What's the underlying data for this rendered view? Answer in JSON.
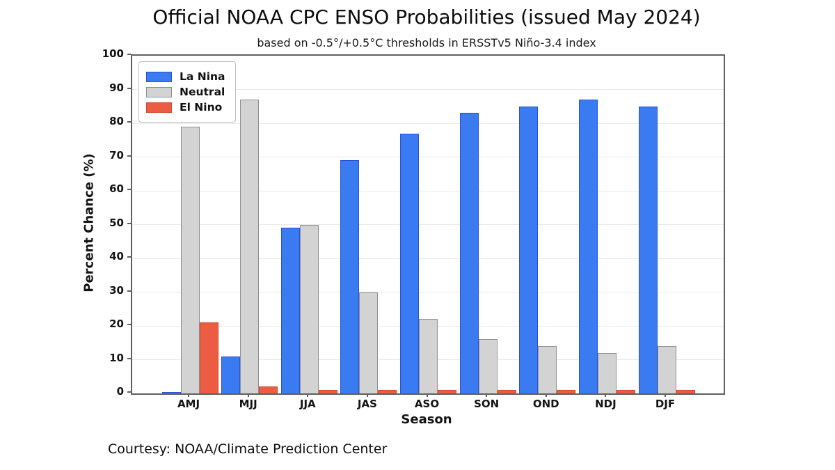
{
  "chart_data": {
    "type": "bar",
    "title": "Official NOAA CPC ENSO Probabilities (issued May 2024)",
    "subtitle": "based on -0.5°/+0.5°C thresholds in ERSSTv5 Niño-3.4 index",
    "xlabel": "Season",
    "ylabel": "Percent Chance (%)",
    "ylim": [
      0,
      100
    ],
    "yticks": [
      0,
      10,
      20,
      30,
      40,
      50,
      60,
      70,
      80,
      90,
      100
    ],
    "grid": "horizontal",
    "legend_position": "upper-left",
    "categories": [
      "AMJ",
      "MJJ",
      "JJA",
      "JAS",
      "ASO",
      "SON",
      "OND",
      "NDJ",
      "DJF"
    ],
    "series": [
      {
        "name": "La Nina",
        "color": "#3a7bf2",
        "edge_color": "#2a4fd8",
        "values": [
          0,
          11,
          49,
          69,
          77,
          83,
          85,
          87,
          85
        ]
      },
      {
        "name": "Neutral",
        "color": "#d3d3d3",
        "edge_color": "#8f8f8f",
        "values": [
          79,
          87,
          50,
          30,
          22,
          16,
          14,
          12,
          14
        ]
      },
      {
        "name": "El Nino",
        "color": "#ec5c43",
        "edge_color": "#d3492f",
        "values": [
          21,
          2,
          1,
          1,
          1,
          1,
          1,
          1,
          1
        ]
      }
    ]
  },
  "footer": {
    "courtesy": "Courtesy: NOAA/Climate Prediction Center"
  }
}
